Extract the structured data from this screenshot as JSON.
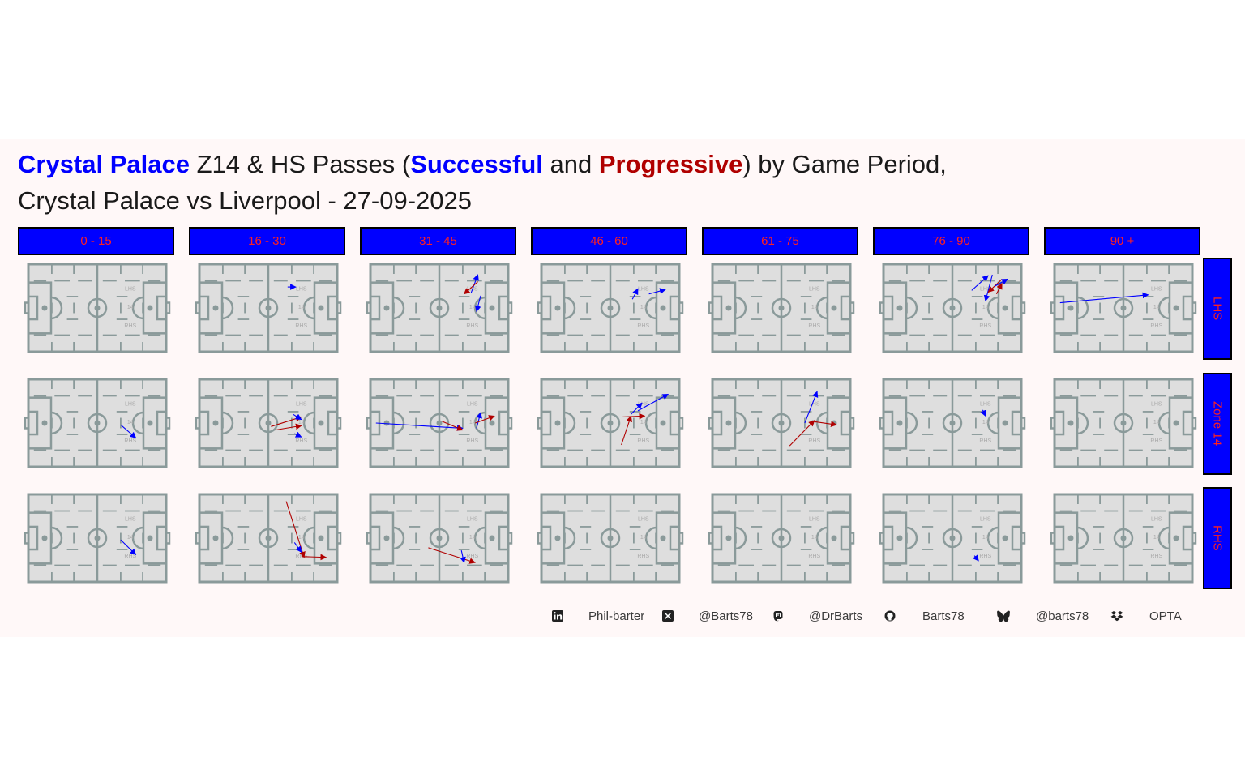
{
  "title": {
    "team": "Crystal Palace",
    "part1": " Z14 & HS Passes (",
    "successful": "Successful",
    "and": " and ",
    "progressive": "Progressive",
    "part2": ") by Game Period,",
    "line2": "Crystal Palace vs Liverpool - 27-09-2025"
  },
  "colors": {
    "successful": "#0000ff",
    "progressive": "#b00000",
    "strip_bg": "#0000ff",
    "strip_text": "#ff2020",
    "pitch_fill": "#dedede",
    "pitch_line": "#8a9a9a"
  },
  "periods": [
    "0 - 15",
    "16 - 30",
    "31 - 45",
    "46 - 60",
    "61 - 75",
    "76 - 90",
    "90 +"
  ],
  "zones": [
    "LHS",
    "Zone 14",
    "RHS"
  ],
  "pitch_labels": {
    "lhs": "LHS",
    "z14": "14",
    "rhs": "RHS"
  },
  "chart_data": {
    "type": "pass-map",
    "x_range": [
      0,
      100
    ],
    "y_range": [
      0,
      100
    ],
    "series": [
      {
        "name": "Successful",
        "color": "#0000ff"
      },
      {
        "name": "Progressive",
        "color": "#b00000"
      }
    ],
    "passes": [
      {
        "period": "16 - 30",
        "zone": "LHS",
        "type": "Successful",
        "x1": 64,
        "y1": 26,
        "x2": 70,
        "y2": 26
      },
      {
        "period": "31 - 45",
        "zone": "LHS",
        "type": "Successful",
        "x1": 73,
        "y1": 33,
        "x2": 78,
        "y2": 12
      },
      {
        "period": "31 - 45",
        "zone": "LHS",
        "type": "Progressive",
        "x1": 78,
        "y1": 20,
        "x2": 68,
        "y2": 34
      },
      {
        "period": "31 - 45",
        "zone": "LHS",
        "type": "Successful",
        "x1": 80,
        "y1": 36,
        "x2": 77,
        "y2": 54
      },
      {
        "period": "46 - 60",
        "zone": "LHS",
        "type": "Successful",
        "x1": 66,
        "y1": 40,
        "x2": 70,
        "y2": 28
      },
      {
        "period": "46 - 60",
        "zone": "LHS",
        "type": "Successful",
        "x1": 78,
        "y1": 34,
        "x2": 90,
        "y2": 29
      },
      {
        "period": "76 - 90",
        "zone": "LHS",
        "type": "Successful",
        "x1": 64,
        "y1": 30,
        "x2": 76,
        "y2": 13
      },
      {
        "period": "76 - 90",
        "zone": "LHS",
        "type": "Successful",
        "x1": 79,
        "y1": 12,
        "x2": 74,
        "y2": 42
      },
      {
        "period": "76 - 90",
        "zone": "LHS",
        "type": "Progressive",
        "x1": 86,
        "y1": 17,
        "x2": 76,
        "y2": 32
      },
      {
        "period": "76 - 90",
        "zone": "LHS",
        "type": "Successful",
        "x1": 81,
        "y1": 25,
        "x2": 90,
        "y2": 17
      },
      {
        "period": "76 - 90",
        "zone": "LHS",
        "type": "Progressive",
        "x1": 82,
        "y1": 34,
        "x2": 86,
        "y2": 22
      },
      {
        "period": "90 +",
        "zone": "LHS",
        "type": "Successful",
        "x1": 4,
        "y1": 44,
        "x2": 68,
        "y2": 35
      },
      {
        "period": "0 - 15",
        "zone": "Zone 14",
        "type": "Successful",
        "x1": 67,
        "y1": 52,
        "x2": 78,
        "y2": 67
      },
      {
        "period": "16 - 30",
        "zone": "Zone 14",
        "type": "Progressive",
        "x1": 52,
        "y1": 54,
        "x2": 74,
        "y2": 43
      },
      {
        "period": "16 - 30",
        "zone": "Zone 14",
        "type": "Progressive",
        "x1": 55,
        "y1": 58,
        "x2": 74,
        "y2": 53
      },
      {
        "period": "16 - 30",
        "zone": "Zone 14",
        "type": "Successful",
        "x1": 68,
        "y1": 40,
        "x2": 74,
        "y2": 46
      },
      {
        "period": "16 - 30",
        "zone": "Zone 14",
        "type": "Successful",
        "x1": 69,
        "y1": 62,
        "x2": 74,
        "y2": 66
      },
      {
        "period": "31 - 45",
        "zone": "Zone 14",
        "type": "Successful",
        "x1": 4,
        "y1": 50,
        "x2": 67,
        "y2": 56
      },
      {
        "period": "31 - 45",
        "zone": "Zone 14",
        "type": "Progressive",
        "x1": 52,
        "y1": 48,
        "x2": 67,
        "y2": 58
      },
      {
        "period": "31 - 45",
        "zone": "Zone 14",
        "type": "Successful",
        "x1": 77,
        "y1": 56,
        "x2": 80,
        "y2": 38
      },
      {
        "period": "31 - 45",
        "zone": "Zone 14",
        "type": "Progressive",
        "x1": 76,
        "y1": 50,
        "x2": 90,
        "y2": 42
      },
      {
        "period": "46 - 60",
        "zone": "Zone 14",
        "type": "Progressive",
        "x1": 58,
        "y1": 75,
        "x2": 65,
        "y2": 42
      },
      {
        "period": "46 - 60",
        "zone": "Zone 14",
        "type": "Successful",
        "x1": 65,
        "y1": 40,
        "x2": 73,
        "y2": 27
      },
      {
        "period": "46 - 60",
        "zone": "Zone 14",
        "type": "Progressive",
        "x1": 59,
        "y1": 43,
        "x2": 75,
        "y2": 42
      },
      {
        "period": "46 - 60",
        "zone": "Zone 14",
        "type": "Successful",
        "x1": 70,
        "y1": 36,
        "x2": 92,
        "y2": 17
      },
      {
        "period": "61 - 75",
        "zone": "Zone 14",
        "type": "Progressive",
        "x1": 56,
        "y1": 76,
        "x2": 74,
        "y2": 47
      },
      {
        "period": "61 - 75",
        "zone": "Zone 14",
        "type": "Successful",
        "x1": 67,
        "y1": 50,
        "x2": 76,
        "y2": 14
      },
      {
        "period": "61 - 75",
        "zone": "Zone 14",
        "type": "Progressive",
        "x1": 72,
        "y1": 48,
        "x2": 90,
        "y2": 52
      },
      {
        "period": "76 - 90",
        "zone": "Zone 14",
        "type": "Successful",
        "x1": 72,
        "y1": 35,
        "x2": 74,
        "y2": 42
      },
      {
        "period": "0 - 15",
        "zone": "RHS",
        "type": "Successful",
        "x1": 67,
        "y1": 52,
        "x2": 78,
        "y2": 69
      },
      {
        "period": "16 - 30",
        "zone": "RHS",
        "type": "Progressive",
        "x1": 63,
        "y1": 8,
        "x2": 76,
        "y2": 72
      },
      {
        "period": "16 - 30",
        "zone": "RHS",
        "type": "Successful",
        "x1": 69,
        "y1": 55,
        "x2": 74,
        "y2": 66
      },
      {
        "period": "16 - 30",
        "zone": "RHS",
        "type": "Progressive",
        "x1": 74,
        "y1": 71,
        "x2": 92,
        "y2": 72
      },
      {
        "period": "31 - 45",
        "zone": "RHS",
        "type": "Progressive",
        "x1": 42,
        "y1": 61,
        "x2": 76,
        "y2": 78
      },
      {
        "period": "31 - 45",
        "zone": "RHS",
        "type": "Successful",
        "x1": 66,
        "y1": 64,
        "x2": 68,
        "y2": 78
      },
      {
        "period": "76 - 90",
        "zone": "RHS",
        "type": "Successful",
        "x1": 66,
        "y1": 70,
        "x2": 69,
        "y2": 76
      }
    ]
  },
  "footer": {
    "items": [
      {
        "icon": "linkedin-icon",
        "text": "Phil-barter"
      },
      {
        "icon": "x-twitter-icon",
        "text": "@Barts78"
      },
      {
        "icon": "mastodon-icon",
        "text": "@DrBarts"
      },
      {
        "icon": "github-icon",
        "text": "Barts78"
      },
      {
        "icon": "bluesky-icon",
        "text": "@barts78"
      },
      {
        "icon": "dropbox-icon",
        "text": "OPTA"
      }
    ]
  }
}
